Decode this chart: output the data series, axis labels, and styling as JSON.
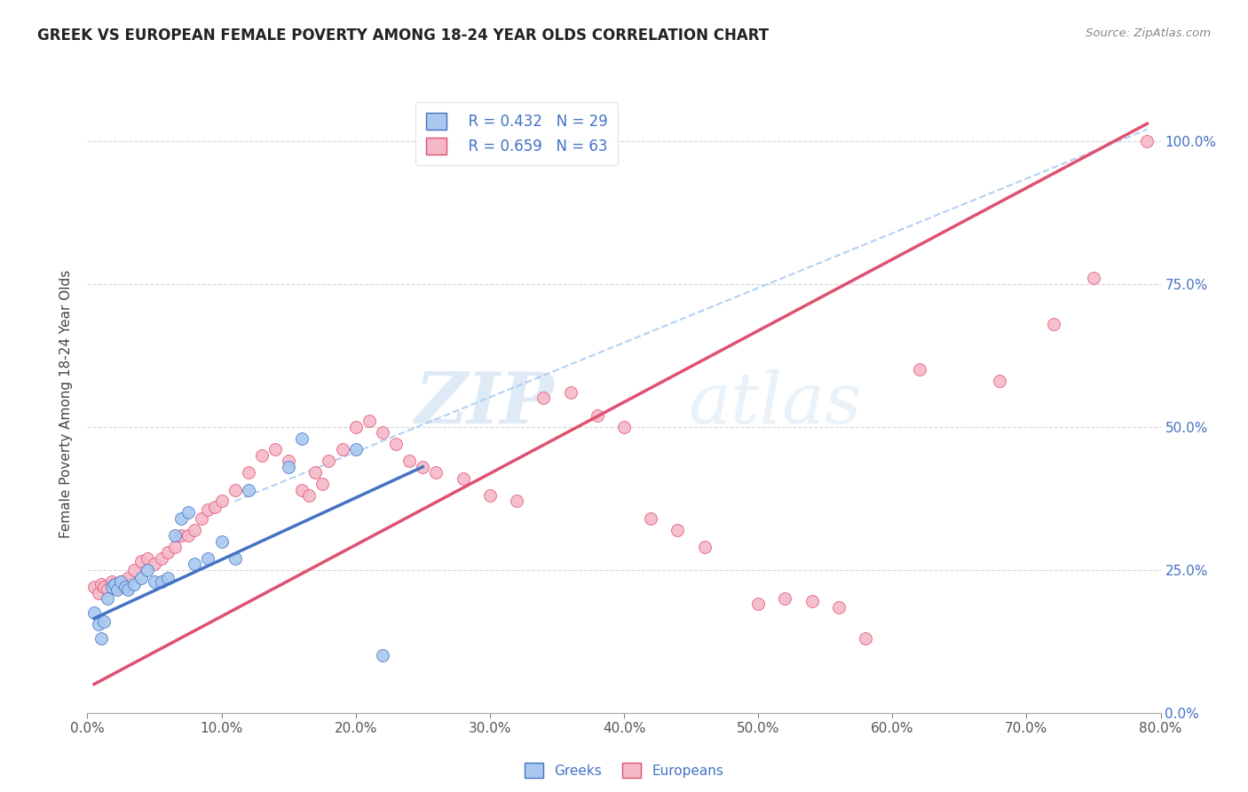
{
  "title": "GREEK VS EUROPEAN FEMALE POVERTY AMONG 18-24 YEAR OLDS CORRELATION CHART",
  "source": "Source: ZipAtlas.com",
  "ylabel": "Female Poverty Among 18-24 Year Olds",
  "xlim": [
    0.0,
    0.8
  ],
  "ylim": [
    0.0,
    1.08
  ],
  "legend_greek": "Greeks",
  "legend_european": "Europeans",
  "r_greek": 0.432,
  "n_greek": 29,
  "r_european": 0.659,
  "n_european": 63,
  "greek_color": "#A8C8F0",
  "european_color": "#F5B8C8",
  "greek_line_color": "#4472C4",
  "european_line_color": "#E05070",
  "dashed_line_color": "#A8C8F0",
  "watermark_zip": "ZIP",
  "watermark_atlas": "atlas",
  "greek_x": [
    0.005,
    0.008,
    0.01,
    0.012,
    0.015,
    0.018,
    0.02,
    0.022,
    0.025,
    0.028,
    0.03,
    0.035,
    0.04,
    0.045,
    0.05,
    0.055,
    0.06,
    0.065,
    0.07,
    0.075,
    0.08,
    0.09,
    0.1,
    0.11,
    0.12,
    0.15,
    0.16,
    0.2,
    0.22
  ],
  "greek_y": [
    0.175,
    0.155,
    0.13,
    0.16,
    0.2,
    0.22,
    0.225,
    0.215,
    0.23,
    0.22,
    0.215,
    0.225,
    0.235,
    0.25,
    0.23,
    0.23,
    0.235,
    0.31,
    0.34,
    0.35,
    0.26,
    0.27,
    0.3,
    0.27,
    0.39,
    0.43,
    0.48,
    0.46,
    0.1
  ],
  "european_x": [
    0.005,
    0.008,
    0.01,
    0.012,
    0.015,
    0.018,
    0.02,
    0.022,
    0.025,
    0.028,
    0.03,
    0.035,
    0.04,
    0.045,
    0.05,
    0.055,
    0.06,
    0.065,
    0.07,
    0.075,
    0.08,
    0.085,
    0.09,
    0.095,
    0.1,
    0.11,
    0.12,
    0.13,
    0.14,
    0.15,
    0.16,
    0.165,
    0.17,
    0.175,
    0.18,
    0.19,
    0.2,
    0.21,
    0.22,
    0.23,
    0.24,
    0.25,
    0.26,
    0.28,
    0.3,
    0.32,
    0.34,
    0.36,
    0.38,
    0.4,
    0.42,
    0.44,
    0.46,
    0.5,
    0.52,
    0.54,
    0.56,
    0.58,
    0.62,
    0.68,
    0.72,
    0.75,
    0.79
  ],
  "european_y": [
    0.22,
    0.21,
    0.225,
    0.22,
    0.215,
    0.23,
    0.225,
    0.22,
    0.23,
    0.225,
    0.235,
    0.25,
    0.265,
    0.27,
    0.26,
    0.27,
    0.28,
    0.29,
    0.31,
    0.31,
    0.32,
    0.34,
    0.355,
    0.36,
    0.37,
    0.39,
    0.42,
    0.45,
    0.46,
    0.44,
    0.39,
    0.38,
    0.42,
    0.4,
    0.44,
    0.46,
    0.5,
    0.51,
    0.49,
    0.47,
    0.44,
    0.43,
    0.42,
    0.41,
    0.38,
    0.37,
    0.55,
    0.56,
    0.52,
    0.5,
    0.34,
    0.32,
    0.29,
    0.19,
    0.2,
    0.195,
    0.185,
    0.13,
    0.6,
    0.58,
    0.68,
    0.76,
    1.0
  ],
  "eu_line_x": [
    0.005,
    0.79
  ],
  "eu_line_y": [
    0.05,
    1.03
  ],
  "gr_line_x": [
    0.005,
    0.25
  ],
  "gr_line_y": [
    0.165,
    0.43
  ],
  "dash_line_x": [
    0.11,
    0.79
  ],
  "dash_line_y": [
    0.37,
    1.02
  ]
}
